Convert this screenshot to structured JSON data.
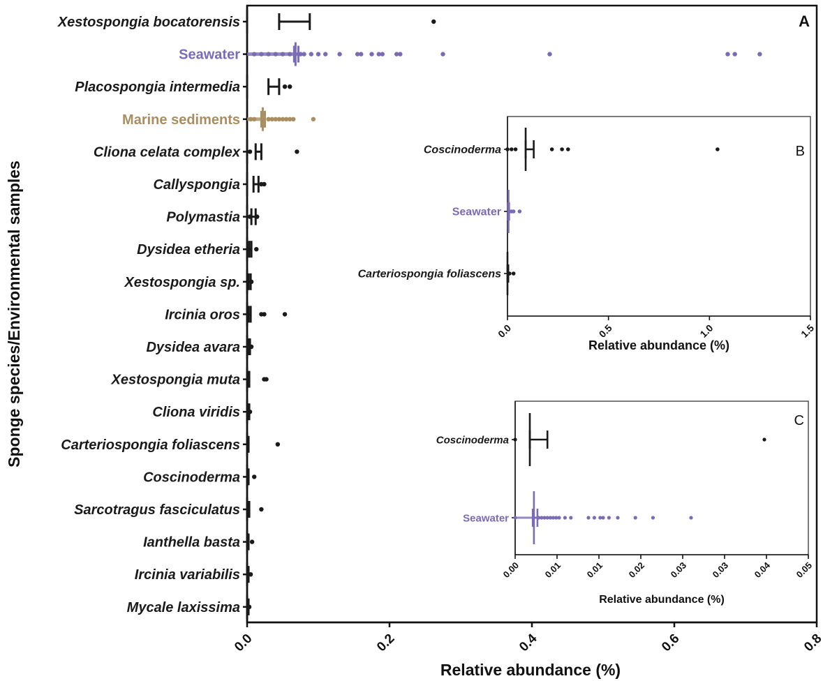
{
  "colors": {
    "default": "#1a1a1a",
    "seawater": "#7b6bb4",
    "sediment": "#a88f63"
  },
  "chart_data": [
    {
      "panel": "A",
      "type": "scatter",
      "orientation": "horizontal",
      "title": "",
      "panel_label": "A",
      "xlabel": "Relative abundance (%)",
      "ylabel": "Sponge species/Environmental samples",
      "xlim": [
        0,
        0.8
      ],
      "xticks": [
        "0.0",
        "0.2",
        "0.4",
        "0.6",
        "0.8"
      ],
      "categories": [
        {
          "label": "Xestospongia bocatorensis",
          "italic": true,
          "color": "default",
          "median": 0.0,
          "ci": [
            0.045,
            0.088
          ],
          "points": [
            0.262
          ]
        },
        {
          "label": "Seawater",
          "italic": false,
          "color": "seawater",
          "median": 0.068,
          "ci": [
            0.066,
            0.072
          ],
          "points": [
            0.01,
            0.02,
            0.03,
            0.04,
            0.05,
            0.06,
            0.075,
            0.08,
            0.09,
            0.1,
            0.11,
            0.13,
            0.155,
            0.16,
            0.175,
            0.185,
            0.19,
            0.21,
            0.215,
            0.275,
            0.425,
            0.675,
            0.685,
            0.72
          ]
        },
        {
          "label": "Placospongia intermedia",
          "italic": true,
          "color": "default",
          "median": 0.0,
          "ci": [
            0.03,
            0.045
          ],
          "points": [
            0.053,
            0.06
          ]
        },
        {
          "label": "Marine sediments",
          "italic": false,
          "color": "sediment",
          "median": 0.022,
          "ci": [
            0.02,
            0.025
          ],
          "points": [
            0.005,
            0.01,
            0.03,
            0.035,
            0.04,
            0.045,
            0.05,
            0.055,
            0.06,
            0.065,
            0.093
          ]
        },
        {
          "label": "Cliona celata complex",
          "italic": true,
          "color": "default",
          "median": 0.0,
          "ci": [
            0.012,
            0.02
          ],
          "points": [
            0.004,
            0.07
          ]
        },
        {
          "label": "Callyspongia",
          "italic": true,
          "color": "default",
          "median": 0.0,
          "ci": [
            0.009,
            0.016
          ],
          "points": [
            0.02,
            0.024
          ]
        },
        {
          "label": "Polymastia",
          "italic": true,
          "color": "default",
          "median": 0.0,
          "ci": [
            0.006,
            0.012
          ],
          "points": [
            0.004,
            0.014
          ]
        },
        {
          "label": "Dysidea etheria",
          "italic": true,
          "color": "default",
          "median": 0.0,
          "ci": [
            0.003,
            0.006
          ],
          "points": [
            0.002,
            0.013
          ]
        },
        {
          "label": "Xestospongia sp.",
          "italic": true,
          "color": "default",
          "median": 0.0,
          "ci": [
            0.002,
            0.005
          ],
          "points": [
            0.001,
            0.006
          ]
        },
        {
          "label": "Ircinia oros",
          "italic": true,
          "color": "default",
          "median": 0.0,
          "ci": [
            0.002,
            0.005
          ],
          "points": [
            0.02,
            0.024,
            0.053
          ]
        },
        {
          "label": "Dysidea avara",
          "italic": true,
          "color": "default",
          "median": 0.0,
          "ci": [
            0.002,
            0.004
          ],
          "points": [
            0.006
          ]
        },
        {
          "label": "Xestospongia muta",
          "italic": true,
          "color": "default",
          "median": 0.0,
          "ci": [
            0.001,
            0.003
          ],
          "points": [
            0.024,
            0.027
          ]
        },
        {
          "label": "Cliona viridis",
          "italic": true,
          "color": "default",
          "median": 0.0,
          "ci": [
            0.001,
            0.003
          ],
          "points": [
            0.004
          ]
        },
        {
          "label": "Carteriospongia foliascens",
          "italic": true,
          "color": "default",
          "median": 0.0,
          "ci": [
            0.001,
            0.002
          ],
          "points": [
            0.043
          ]
        },
        {
          "label": "Coscinoderma",
          "italic": true,
          "color": "default",
          "median": 0.0,
          "ci": [
            0.001,
            0.002
          ],
          "points": [
            0.01
          ]
        },
        {
          "label": "Sarcotragus fasciculatus",
          "italic": true,
          "color": "default",
          "median": 0.0,
          "ci": [
            0.001,
            0.003
          ],
          "points": [
            0.02
          ]
        },
        {
          "label": "Ianthella basta",
          "italic": true,
          "color": "default",
          "median": 0.0,
          "ci": [
            0.001,
            0.002
          ],
          "points": [
            0.007
          ]
        },
        {
          "label": "Ircinia variabilis",
          "italic": true,
          "color": "default",
          "median": 0.0,
          "ci": [
            0.001,
            0.002
          ],
          "points": [
            0.005
          ]
        },
        {
          "label": "Mycale laxissima",
          "italic": true,
          "color": "default",
          "median": 0.0,
          "ci": [
            0.001,
            0.002
          ],
          "points": [
            0.003
          ]
        }
      ]
    },
    {
      "panel": "B",
      "type": "scatter",
      "orientation": "horizontal",
      "panel_label": "B",
      "xlabel": "Relative abundance (%)",
      "xlim": [
        0,
        1.5
      ],
      "xticks": [
        "0.0",
        "0.5",
        "1.0",
        "1.5"
      ],
      "categories": [
        {
          "label": "Coscinoderma",
          "italic": true,
          "color": "default",
          "median": 0.09,
          "ci": [
            0.09,
            0.13
          ],
          "points": [
            0.0,
            0.02,
            0.04,
            0.22,
            0.27,
            0.3,
            1.04
          ]
        },
        {
          "label": "Seawater",
          "italic": false,
          "color": "seawater",
          "median": 0.005,
          "ci": [
            0.003,
            0.008
          ],
          "points": [
            0.01,
            0.02,
            0.03,
            0.06
          ]
        },
        {
          "label": "Carteriospongia foliascens",
          "italic": true,
          "color": "default",
          "median": 0.0,
          "ci": [
            0.0,
            0.004
          ],
          "points": [
            0.01,
            0.03
          ]
        }
      ]
    },
    {
      "panel": "C",
      "type": "scatter",
      "orientation": "horizontal",
      "panel_label": "C",
      "xlabel": "Relative abundance (%)",
      "xlim": [
        0,
        0.05
      ],
      "xticks": [
        "0.00",
        "0.01",
        "0.01",
        "0.02",
        "0.03",
        "0.03",
        "0.04",
        "0.05"
      ],
      "categories": [
        {
          "label": "Coscinoderma",
          "italic": true,
          "color": "default",
          "median": 0.0025,
          "ci": [
            0.0025,
            0.0055
          ],
          "points": [
            0.0,
            0.0425
          ]
        },
        {
          "label": "Seawater",
          "italic": false,
          "color": "seawater",
          "median": 0.0032,
          "ci": [
            0.003,
            0.0038
          ],
          "points": [
            0.0,
            0.004,
            0.0045,
            0.005,
            0.0055,
            0.006,
            0.0065,
            0.007,
            0.0075,
            0.0085,
            0.0095,
            0.0125,
            0.0135,
            0.0145,
            0.015,
            0.016,
            0.0175,
            0.0205,
            0.0235,
            0.03
          ]
        }
      ]
    }
  ]
}
